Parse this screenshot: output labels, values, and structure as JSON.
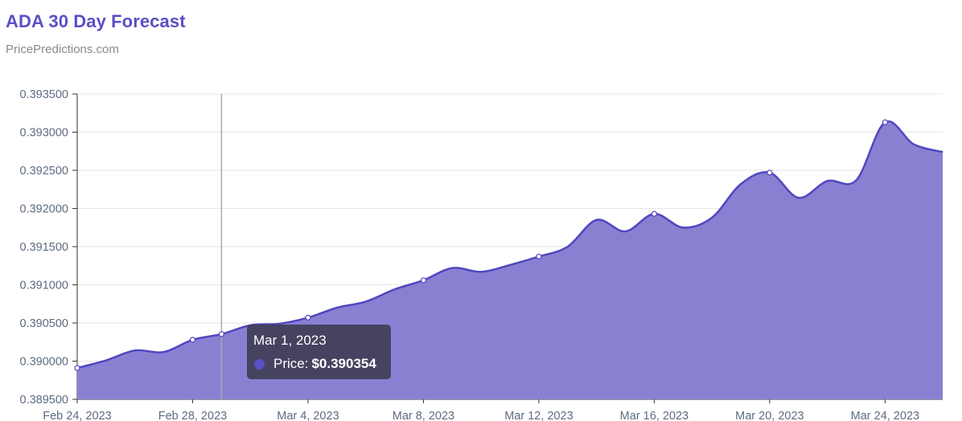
{
  "header": {
    "title": "ADA 30 Day Forecast",
    "subtitle": "PricePredictions.com"
  },
  "tooltip": {
    "date": "Mar 1, 2023",
    "label": "Price:",
    "value": "$0.390354"
  },
  "colors": {
    "accent": "#5a4fc4",
    "area_fill": "#8a80d2",
    "line": "#5046c0",
    "grid": "#e6e6e6",
    "crosshair": "#aaaaaa"
  },
  "chart_data": {
    "type": "area",
    "title": "ADA 30 Day Forecast",
    "ylim": [
      0.3895,
      0.3935
    ],
    "yticks": [
      "0.393500",
      "0.393000",
      "0.392500",
      "0.392000",
      "0.391500",
      "0.391000",
      "0.390500",
      "0.390000",
      "0.389500"
    ],
    "xticks": [
      "Feb 24, 2023",
      "Feb 28, 2023",
      "Mar 4, 2023",
      "Mar 8, 2023",
      "Mar 12, 2023",
      "Mar 16, 2023",
      "Mar 20, 2023",
      "Mar 24, 2023"
    ],
    "grid": true,
    "series": [
      {
        "name": "Price",
        "x": [
          "2023-02-24",
          "2023-02-25",
          "2023-02-26",
          "2023-02-27",
          "2023-02-28",
          "2023-03-01",
          "2023-03-02",
          "2023-03-03",
          "2023-03-04",
          "2023-03-05",
          "2023-03-06",
          "2023-03-07",
          "2023-03-08",
          "2023-03-09",
          "2023-03-10",
          "2023-03-11",
          "2023-03-12",
          "2023-03-13",
          "2023-03-14",
          "2023-03-15",
          "2023-03-16",
          "2023-03-17",
          "2023-03-18",
          "2023-03-19",
          "2023-03-20",
          "2023-03-21",
          "2023-03-22",
          "2023-03-23",
          "2023-03-24",
          "2023-03-25",
          "2023-03-26"
        ],
        "values": [
          0.38991,
          0.39001,
          0.39014,
          0.39012,
          0.39028,
          0.390354,
          0.39047,
          0.39049,
          0.39057,
          0.3907,
          0.39078,
          0.39094,
          0.39106,
          0.39122,
          0.39117,
          0.39126,
          0.39137,
          0.3915,
          0.39185,
          0.3917,
          0.39193,
          0.39175,
          0.39188,
          0.39232,
          0.39247,
          0.39214,
          0.39236,
          0.39237,
          0.39313,
          0.39284,
          0.39274
        ]
      }
    ],
    "marked_points": [
      "2023-02-24",
      "2023-02-28",
      "2023-03-01",
      "2023-03-04",
      "2023-03-08",
      "2023-03-12",
      "2023-03-16",
      "2023-03-20",
      "2023-03-24"
    ]
  }
}
